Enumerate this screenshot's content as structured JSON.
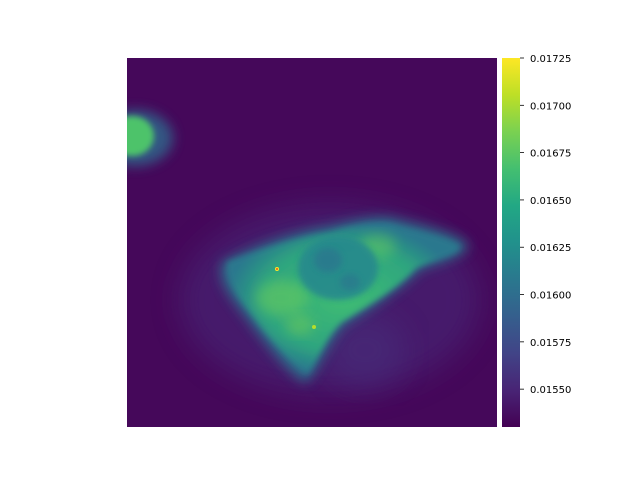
{
  "figure": {
    "colormap": "viridis",
    "background": "#ffffff"
  },
  "colorbar": {
    "tick_labels": [
      "0.01725",
      "0.01700",
      "0.01675",
      "0.01650",
      "0.01625",
      "0.01600",
      "0.01575",
      "0.01550"
    ],
    "vmin": 0.0153,
    "vmax": 0.01725
  },
  "image_content": {
    "subject": "fluorescence micrograph of a single cell with a partial neighbouring cell at the left edge",
    "background_level": 0.01535,
    "cell_body_level": 0.01665,
    "nucleus_level": 0.01635,
    "colors": {
      "low": "#440154",
      "mid": "#21918c",
      "high": "#fde725"
    }
  }
}
